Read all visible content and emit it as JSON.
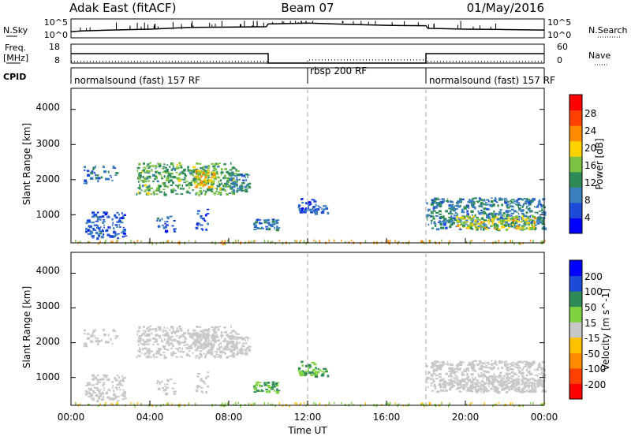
{
  "header": {
    "title": "Adak East (fitACF)",
    "beam": "Beam 07",
    "date": "01/May/2016"
  },
  "noise_panel": {
    "left_label": "N.Sky",
    "left_ticks": [
      "10^5",
      "10^0"
    ],
    "right_ticks": [
      "10^5",
      "10^0"
    ],
    "right_label": "N.Search"
  },
  "freq_panel": {
    "left_label_1": "Freq.",
    "left_label_2": "[MHz]",
    "left_ticks": [
      "18",
      "8"
    ],
    "right_ticks": [
      "60",
      "0"
    ],
    "right_label": "Nave"
  },
  "cpid": {
    "label": "CPID",
    "segments": [
      "normalsound (fast) 157 RF",
      "rbsp 200 RF",
      "normalsound (fast) 157 RF"
    ]
  },
  "x_axis": {
    "title": "Time UT",
    "ticks": [
      "00:00",
      "04:00",
      "08:00",
      "12:00",
      "16:00",
      "20:00",
      "00:00"
    ]
  },
  "power_panel": {
    "ylabel": "Slant Range [km]",
    "yticks": [
      "4000",
      "3000",
      "2000",
      "1000"
    ],
    "colorbar_label": "Power [dB]",
    "colorbar_ticks": [
      "28",
      "24",
      "20",
      "16",
      "12",
      "8",
      "4"
    ]
  },
  "velocity_panel": {
    "ylabel": "Slant Range [km]",
    "yticks": [
      "4000",
      "3000",
      "2000",
      "1000"
    ],
    "colorbar_label": "Velocity [m s^-1]",
    "colorbar_ticks": [
      "200",
      "100",
      "50",
      "15",
      "-15",
      "-50",
      "-100",
      "-200"
    ]
  },
  "chart_data": {
    "type": "heatmap",
    "xlim_hours": [
      0,
      24
    ],
    "ylim_km": [
      200,
      4600
    ],
    "cpid_boundaries_hours": [
      12,
      18
    ],
    "power_scale_db": [
      0,
      32
    ],
    "velocity_scale_ms": [
      -250,
      250
    ],
    "power_colors": [
      "#0000ff",
      "#1d4ad6",
      "#3b7fbf",
      "#2e8b57",
      "#7cc142",
      "#ffd200",
      "#ff8c00",
      "#ff4000",
      "#ff0000"
    ],
    "velocity_colors": [
      "#ff0000",
      "#ff4000",
      "#ff8c00",
      "#ffc200",
      "#c8c8c8",
      "#7fd13f",
      "#2e8b57",
      "#1d4ad6",
      "#0000ff"
    ],
    "noise_sky_trace": [
      [
        0,
        0.35
      ],
      [
        0.5,
        0.4
      ],
      [
        2,
        0.45
      ],
      [
        4,
        0.5
      ],
      [
        6,
        0.6
      ],
      [
        8,
        0.62
      ],
      [
        9.9,
        0.64
      ],
      [
        10,
        0.8
      ],
      [
        12,
        0.85
      ],
      [
        14,
        0.78
      ],
      [
        16,
        0.72
      ],
      [
        18,
        0.7
      ],
      [
        18.1,
        0.55
      ],
      [
        20,
        0.5
      ],
      [
        22,
        0.48
      ],
      [
        24,
        0.45
      ]
    ],
    "freq_trace": [
      [
        0,
        13
      ],
      [
        10,
        13
      ],
      [
        10,
        8
      ],
      [
        18,
        8
      ],
      [
        18,
        13
      ],
      [
        24,
        13
      ]
    ],
    "nave_trace": [
      [
        0,
        5
      ],
      [
        10,
        5
      ],
      [
        10,
        0
      ],
      [
        12,
        0
      ],
      [
        12,
        10
      ],
      [
        18,
        10
      ],
      [
        18,
        5
      ],
      [
        24,
        5
      ]
    ],
    "echo_regions": [
      {
        "t": [
          0.6,
          2.3
        ],
        "r": [
          1900,
          2400
        ],
        "p": 8,
        "v": 0,
        "n": 40
      },
      {
        "t": [
          3.3,
          8.4
        ],
        "r": [
          1600,
          2500
        ],
        "p": 14,
        "v": 0,
        "n": 420
      },
      {
        "t": [
          6.2,
          7.2
        ],
        "r": [
          1800,
          2300
        ],
        "p": 20,
        "v": -5,
        "n": 60
      },
      {
        "t": [
          8.0,
          9.0
        ],
        "r": [
          1700,
          2200
        ],
        "p": 10,
        "v": 0,
        "n": 60
      },
      {
        "t": [
          0.7,
          2.7
        ],
        "r": [
          350,
          1100
        ],
        "p": 7,
        "v": 0,
        "n": 120
      },
      {
        "t": [
          4.3,
          5.3
        ],
        "r": [
          500,
          1000
        ],
        "p": 7,
        "v": 0,
        "n": 25
      },
      {
        "t": [
          6.3,
          6.9
        ],
        "r": [
          600,
          1200
        ],
        "p": 6,
        "v": 0,
        "n": 20
      },
      {
        "t": [
          9.2,
          10.5
        ],
        "r": [
          600,
          900
        ],
        "p": 8,
        "v": 80,
        "n": 45
      },
      {
        "t": [
          11.5,
          12.4
        ],
        "r": [
          1050,
          1500
        ],
        "p": 6,
        "v": 80,
        "n": 35
      },
      {
        "t": [
          12.2,
          13.0
        ],
        "r": [
          1050,
          1300
        ],
        "p": 6,
        "v": 80,
        "n": 25
      },
      {
        "t": [
          18.0,
          24.0
        ],
        "r": [
          600,
          1500
        ],
        "p": 10,
        "v": 0,
        "n": 520
      },
      {
        "t": [
          19.5,
          23.5
        ],
        "r": [
          600,
          1000
        ],
        "p": 18,
        "v": -5,
        "n": 150
      }
    ]
  }
}
